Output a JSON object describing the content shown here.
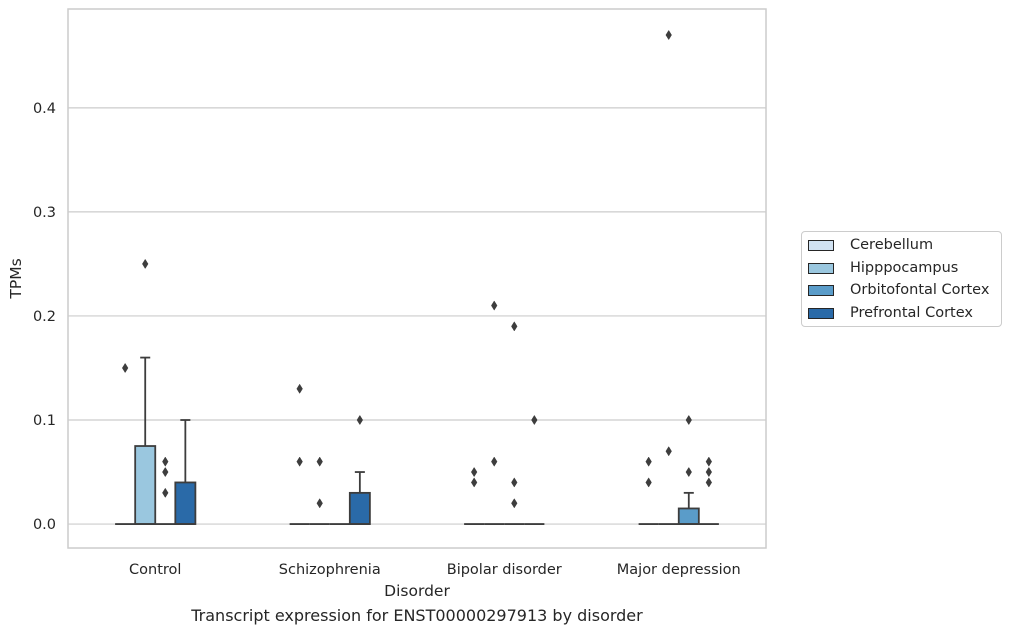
{
  "chart_data": {
    "type": "box",
    "title": "",
    "caption": "Transcript expression for ENST00000297913 by disorder",
    "xlabel": "Disorder",
    "ylabel": "TPMs",
    "ylim": [
      -0.023,
      0.495
    ],
    "yticks": [
      0.0,
      0.1,
      0.2,
      0.3,
      0.4
    ],
    "ytick_labels": [
      "0.0",
      "0.1",
      "0.2",
      "0.3",
      "0.4"
    ],
    "grid": true,
    "legend_position": "right",
    "categories": [
      "Control",
      "Schizophrenia",
      "Bipolar disorder",
      "Major depression"
    ],
    "series": [
      {
        "name": "Cerebellum",
        "color": "#d1e2f2",
        "boxes": [
          {
            "q1": 0,
            "median": 0,
            "q3": 0,
            "whisker_low": 0,
            "whisker_high": 0,
            "outliers": [
              0.15
            ]
          },
          {
            "q1": 0,
            "median": 0,
            "q3": 0,
            "whisker_low": 0,
            "whisker_high": 0,
            "outliers": [
              0.13,
              0.06
            ]
          },
          {
            "q1": 0,
            "median": 0,
            "q3": 0,
            "whisker_low": 0,
            "whisker_high": 0,
            "outliers": [
              0.05,
              0.04
            ]
          },
          {
            "q1": 0,
            "median": 0,
            "q3": 0,
            "whisker_low": 0,
            "whisker_high": 0,
            "outliers": [
              0.06,
              0.04
            ]
          }
        ]
      },
      {
        "name": "Hipppocampus",
        "color": "#9ac7df",
        "boxes": [
          {
            "q1": 0,
            "median": 0,
            "q3": 0.075,
            "whisker_low": 0,
            "whisker_high": 0.16,
            "outliers": [
              0.25
            ]
          },
          {
            "q1": 0,
            "median": 0,
            "q3": 0,
            "whisker_low": 0,
            "whisker_high": 0,
            "outliers": [
              0.06,
              0.02
            ]
          },
          {
            "q1": 0,
            "median": 0,
            "q3": 0,
            "whisker_low": 0,
            "whisker_high": 0,
            "outliers": [
              0.21,
              0.06
            ]
          },
          {
            "q1": 0,
            "median": 0,
            "q3": 0,
            "whisker_low": 0,
            "whisker_high": 0,
            "outliers": [
              0.47,
              0.07
            ]
          }
        ]
      },
      {
        "name": "Orbitofontal Cortex",
        "color": "#5a9cc9",
        "boxes": [
          {
            "q1": 0,
            "median": 0,
            "q3": 0,
            "whisker_low": 0,
            "whisker_high": 0,
            "outliers": [
              0.06,
              0.05,
              0.03
            ]
          },
          {
            "q1": 0,
            "median": 0,
            "q3": 0,
            "whisker_low": 0,
            "whisker_high": 0,
            "outliers": []
          },
          {
            "q1": 0,
            "median": 0,
            "q3": 0,
            "whisker_low": 0,
            "whisker_high": 0,
            "outliers": [
              0.19,
              0.04,
              0.02
            ]
          },
          {
            "q1": 0,
            "median": 0,
            "q3": 0.015,
            "whisker_low": 0,
            "whisker_high": 0.03,
            "outliers": [
              0.1,
              0.05
            ]
          }
        ]
      },
      {
        "name": "Prefrontal Cortex",
        "color": "#2a6aa8",
        "boxes": [
          {
            "q1": 0,
            "median": 0,
            "q3": 0.04,
            "whisker_low": 0,
            "whisker_high": 0.1,
            "outliers": []
          },
          {
            "q1": 0,
            "median": 0,
            "q3": 0.03,
            "whisker_low": 0,
            "whisker_high": 0.05,
            "outliers": [
              0.1
            ]
          },
          {
            "q1": 0,
            "median": 0,
            "q3": 0,
            "whisker_low": 0,
            "whisker_high": 0,
            "outliers": [
              0.1
            ]
          },
          {
            "q1": 0,
            "median": 0,
            "q3": 0,
            "whisker_low": 0,
            "whisker_high": 0,
            "outliers": [
              0.06,
              0.05,
              0.04
            ]
          }
        ]
      }
    ]
  }
}
